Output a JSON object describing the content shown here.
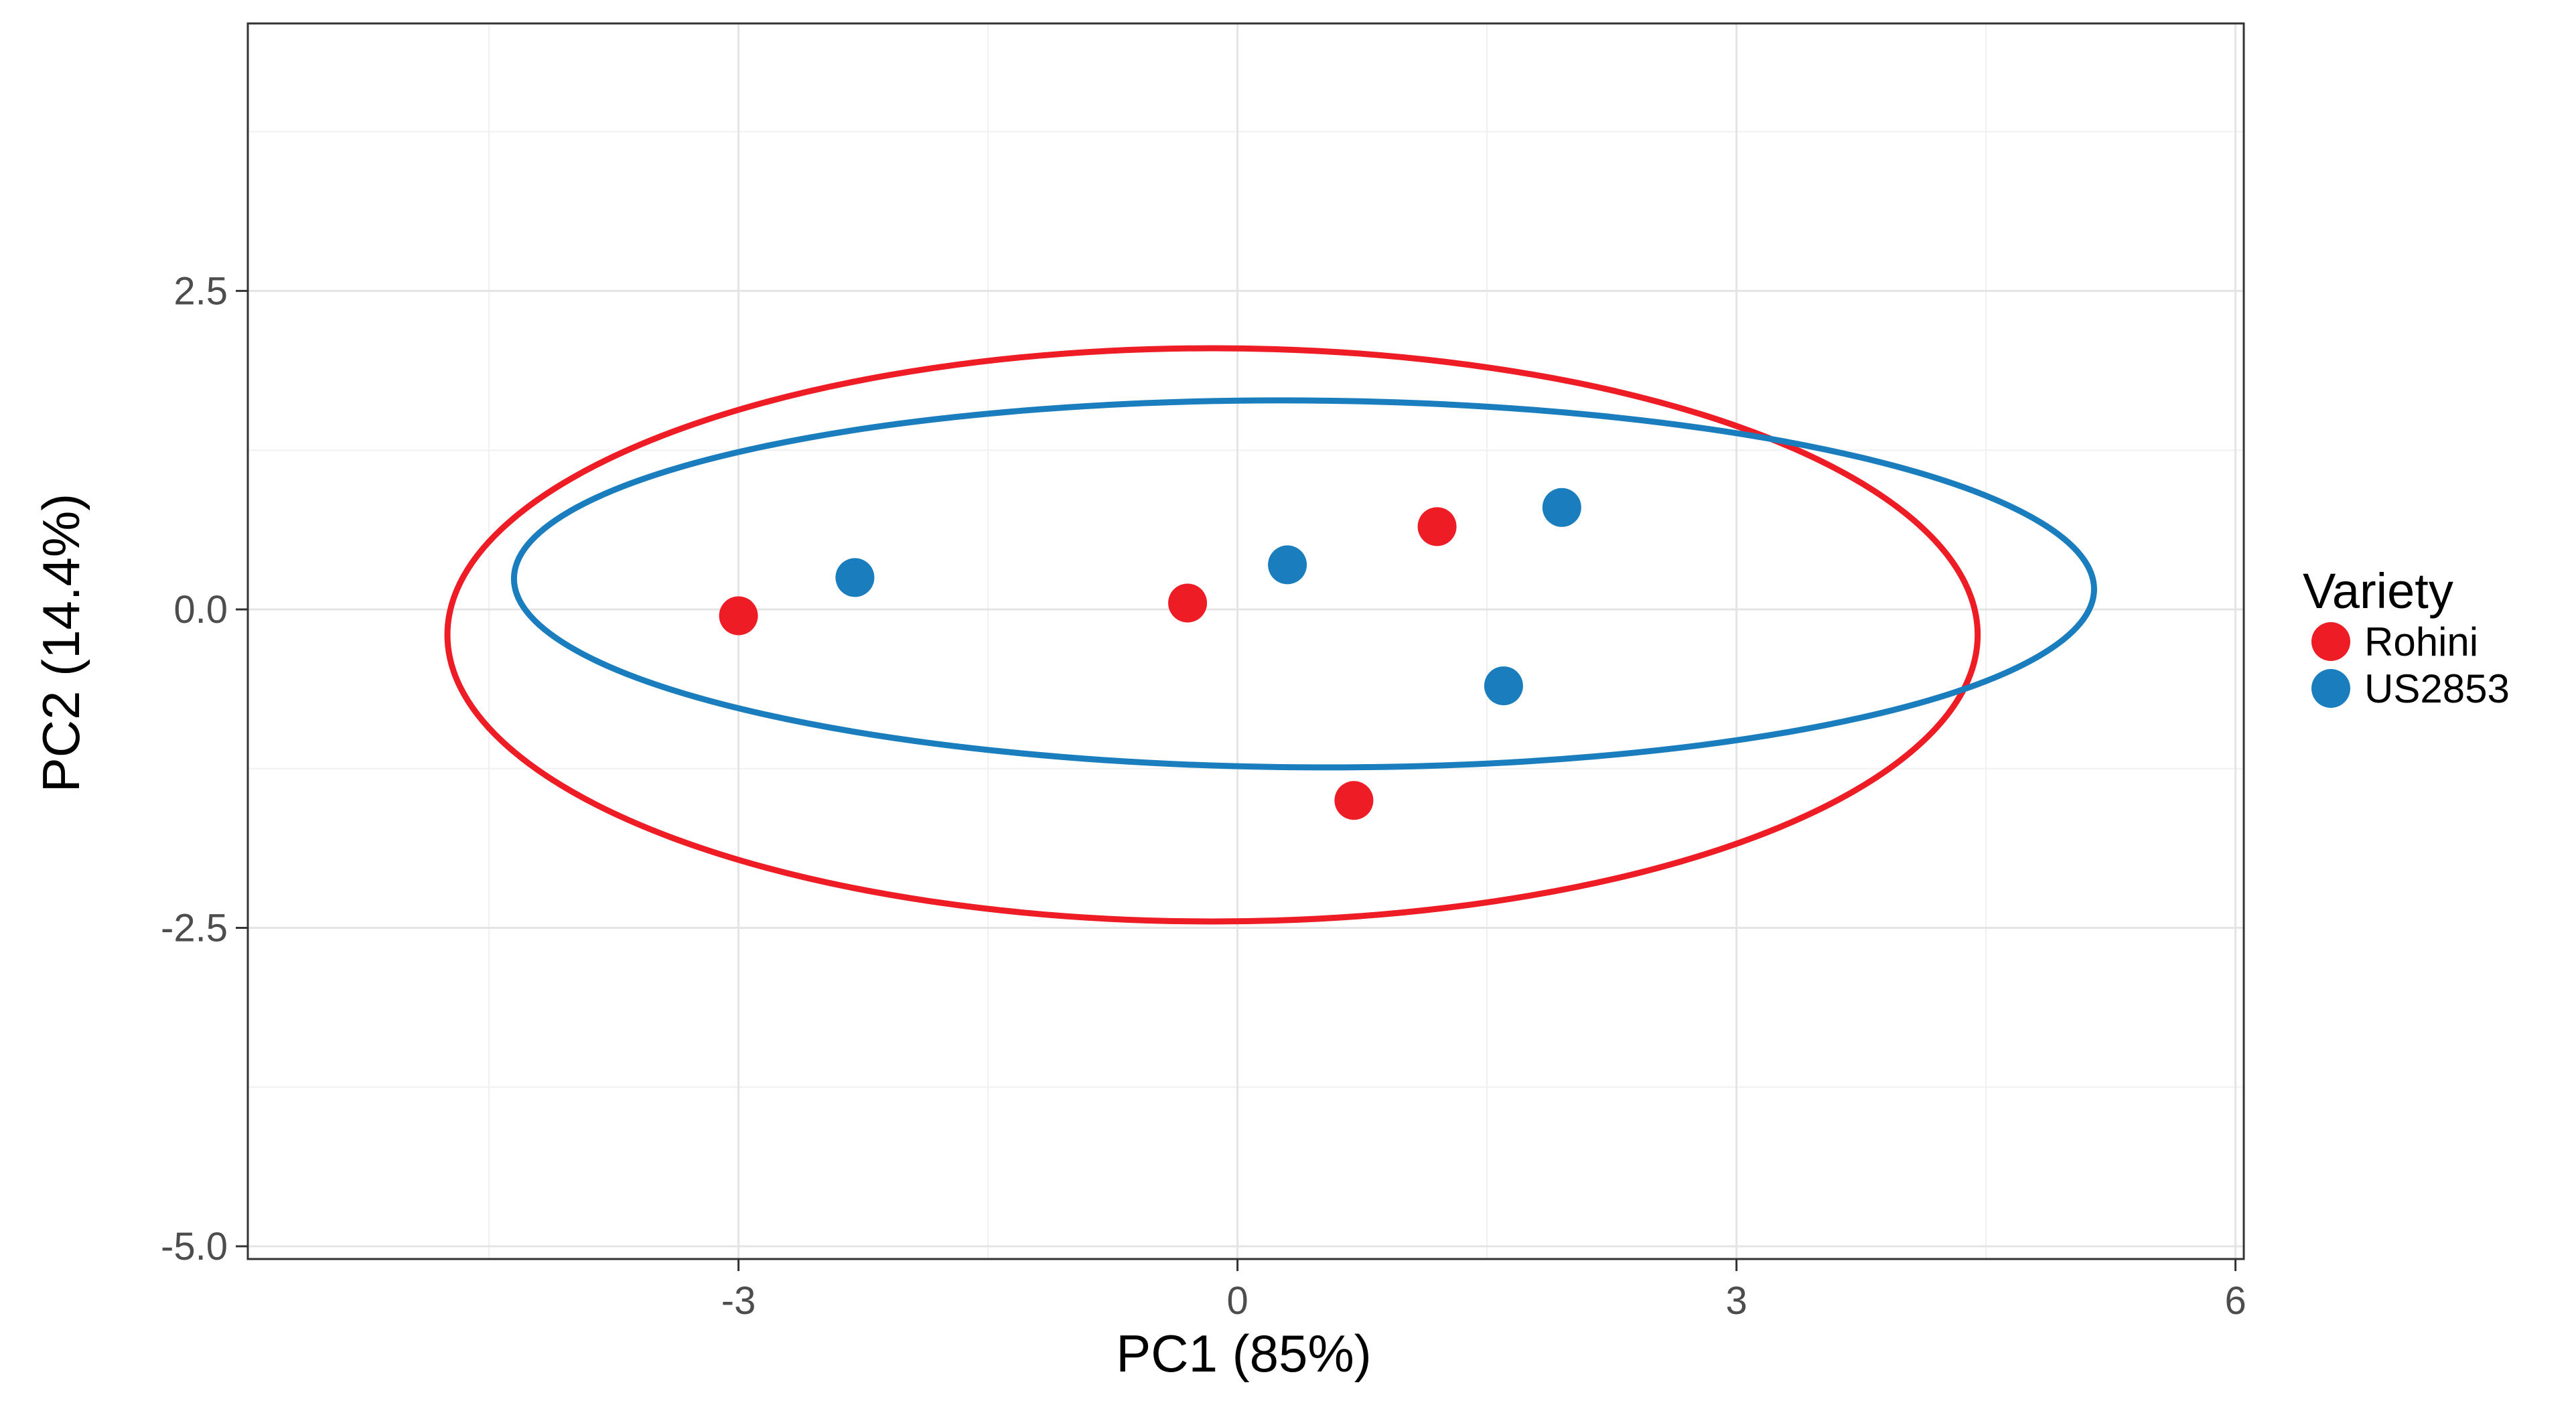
{
  "chart_data": {
    "type": "scatter",
    "title": "",
    "xlabel": "PC1 (85%)",
    "ylabel": "PC2 (14.4%)",
    "xlim": [
      -5.95,
      6.05
    ],
    "ylim": [
      -5.1,
      4.6
    ],
    "x_ticks": [
      -3,
      0,
      3,
      6
    ],
    "x_tick_labels": [
      "-3",
      "0",
      "3",
      "6"
    ],
    "y_ticks": [
      -5.0,
      -2.5,
      0.0,
      2.5
    ],
    "y_tick_labels": [
      "-5.0",
      "-2.5",
      "0.0",
      "2.5"
    ],
    "grid": true,
    "legend": {
      "title": "Variety",
      "placement": "right"
    },
    "series": [
      {
        "name": "Rohini",
        "color": "#ee1c25",
        "points": [
          {
            "x": -3.0,
            "y": -0.05
          },
          {
            "x": -0.3,
            "y": 0.05
          },
          {
            "x": 1.2,
            "y": 0.65
          },
          {
            "x": 0.7,
            "y": -1.5
          }
        ],
        "ellipse": {
          "cx": -0.15,
          "cy": -0.2,
          "rx": 4.6,
          "ry": 2.25,
          "angle_deg": 0
        }
      },
      {
        "name": "US2853",
        "color": "#1a7dbd",
        "points": [
          {
            "x": -2.3,
            "y": 0.25
          },
          {
            "x": 0.3,
            "y": 0.35
          },
          {
            "x": 1.95,
            "y": 0.8
          },
          {
            "x": 1.6,
            "y": -0.6
          }
        ],
        "ellipse": {
          "cx": 0.4,
          "cy": 0.2,
          "rx": 4.75,
          "ry": 1.44,
          "angle_deg": -0.4
        }
      }
    ]
  }
}
